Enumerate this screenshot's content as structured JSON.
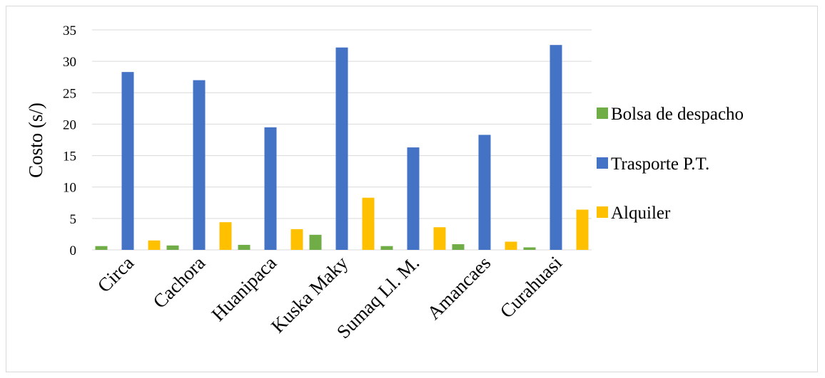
{
  "chart_data": {
    "type": "bar",
    "title": "",
    "xlabel": "",
    "ylabel": "Costo (s/)",
    "ylim": [
      0,
      35
    ],
    "yticks": [
      0,
      5,
      10,
      15,
      20,
      25,
      30,
      35
    ],
    "grid": true,
    "legend_position": "right",
    "categories": [
      "Circa",
      "Cachora",
      "Huanipaca",
      "Kuska Maky",
      "Sumaq Ll. M.",
      "Amancaes",
      "Curahuasi"
    ],
    "series": [
      {
        "name": "Bolsa de despacho",
        "color": "#70ad47",
        "values": [
          0.6,
          0.7,
          0.8,
          2.4,
          0.6,
          0.9,
          0.4
        ]
      },
      {
        "name": "Trasporte P.T.",
        "color": "#4472c4",
        "values": [
          28.3,
          27.0,
          19.5,
          32.2,
          16.3,
          18.3,
          32.6
        ]
      },
      {
        "name": "Alquiler",
        "color": "#ffc000",
        "values": [
          1.5,
          4.4,
          3.3,
          8.3,
          3.6,
          1.3,
          6.4
        ]
      }
    ]
  }
}
